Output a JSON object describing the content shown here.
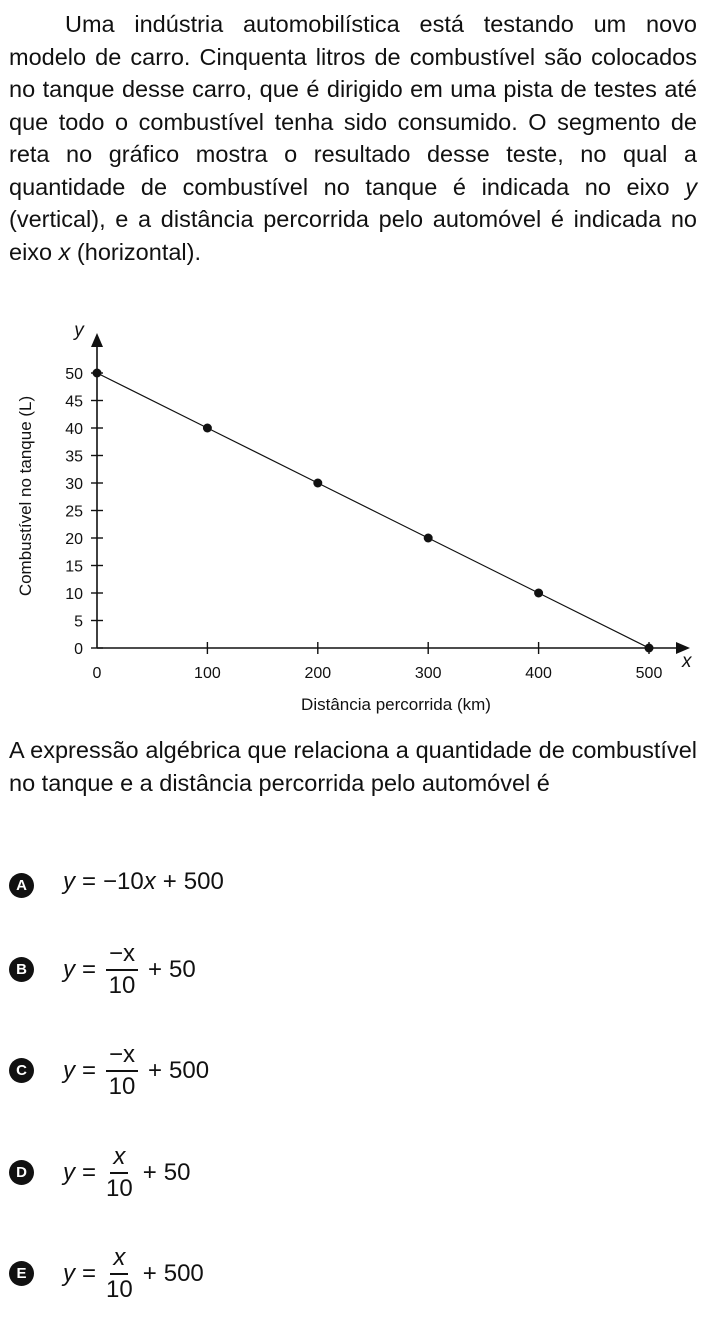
{
  "intro": {
    "part1": "Uma indústria automobilística está testando um novo modelo de carro. Cinquenta litros de combustível são colocados no tanque desse carro, que é dirigido em uma pista de testes até que todo o combustível tenha sido consumido. O segmento de reta no gráfico mostra o resultado desse teste, no qual a quantidade de combustível no tanque é indicada no eixo ",
    "var_y": "y",
    "part2": " (vertical), e a distância percorrida pelo automóvel é indicada no eixo ",
    "var_x": "x",
    "part3": " (horizontal)."
  },
  "chart_data": {
    "type": "line",
    "title": "",
    "xlabel": "Distância percorrida (km)",
    "ylabel": "Combustível no tanque (L)",
    "x_axis_symbol": "x",
    "y_axis_symbol": "y",
    "xlim": [
      0,
      500
    ],
    "ylim": [
      0,
      50
    ],
    "x_ticks": [
      0,
      100,
      200,
      300,
      400,
      500
    ],
    "y_ticks": [
      0,
      5,
      10,
      15,
      20,
      25,
      30,
      35,
      40,
      45,
      50
    ],
    "x": [
      0,
      100,
      200,
      300,
      400,
      500
    ],
    "y": [
      50,
      40,
      30,
      20,
      10,
      0
    ],
    "grid": false
  },
  "question": "A expressão algébrica que relaciona a quantidade de combustível no tanque e a distância percorrida pelo automóvel é",
  "options": [
    {
      "letter": "A",
      "lhs": "y",
      "eq": "=",
      "coef": "−10",
      "var": "x",
      "op": "+",
      "const": "500"
    },
    {
      "letter": "B",
      "lhs": "y",
      "eq": "=",
      "num": "−x",
      "den": "10",
      "op": "+",
      "const": "50"
    },
    {
      "letter": "C",
      "lhs": "y",
      "eq": "=",
      "num": "−x",
      "den": "10",
      "op": "+",
      "const": "500"
    },
    {
      "letter": "D",
      "lhs": "y",
      "eq": "=",
      "num": "x",
      "den": "10",
      "op": "+",
      "const": "50"
    },
    {
      "letter": "E",
      "lhs": "y",
      "eq": "=",
      "num": "x",
      "den": "10",
      "op": "+",
      "const": "500"
    }
  ]
}
